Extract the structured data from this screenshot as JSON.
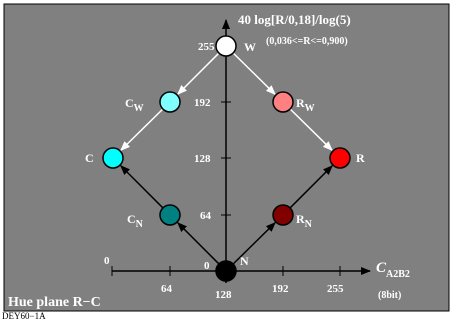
{
  "colors": {
    "panel_bg": "#808080",
    "axis": "#000000",
    "arrow_white": "#ffffff",
    "node_outline": "#000000",
    "label": "#ffffff"
  },
  "title": {
    "y_axis_main": "40 log[R/0,18]/log(5)",
    "y_axis_range": "(0,036<=R<=0,900)",
    "x_axis_main": "C",
    "x_axis_sub": "A2B2",
    "x_axis_unit": "(8bit)",
    "plane": "Hue plane R−C"
  },
  "footer": "DEY60−1A",
  "axes": {
    "y_ticks": [
      "255",
      "192",
      "128",
      "64",
      "0"
    ],
    "x_ticks_lower": [
      "0",
      "64",
      "128",
      "192",
      "255"
    ]
  },
  "nodes": [
    {
      "id": "W",
      "label": "W",
      "sub": "",
      "color": "#ffffff"
    },
    {
      "id": "CW",
      "label": "C",
      "sub": "W",
      "color": "#80ffff"
    },
    {
      "id": "RW",
      "label": "R",
      "sub": "W",
      "color": "#ff8080"
    },
    {
      "id": "C",
      "label": "C",
      "sub": "",
      "color": "#00ffff"
    },
    {
      "id": "R",
      "label": "R",
      "sub": "",
      "color": "#ff0000"
    },
    {
      "id": "CN",
      "label": "C",
      "sub": "N",
      "color": "#008080"
    },
    {
      "id": "RN",
      "label": "R",
      "sub": "N",
      "color": "#800000"
    },
    {
      "id": "N",
      "label": "N",
      "sub": "",
      "color": "#000000"
    }
  ],
  "edges": [
    {
      "from": "W",
      "to": "CW",
      "style": "white"
    },
    {
      "from": "CW",
      "to": "C",
      "style": "white"
    },
    {
      "from": "W",
      "to": "RW",
      "style": "white"
    },
    {
      "from": "RW",
      "to": "R",
      "style": "white"
    },
    {
      "from": "N",
      "to": "CN",
      "style": "black"
    },
    {
      "from": "CN",
      "to": "C",
      "style": "black"
    },
    {
      "from": "N",
      "to": "RN",
      "style": "black"
    },
    {
      "from": "RN",
      "to": "R",
      "style": "black"
    }
  ]
}
